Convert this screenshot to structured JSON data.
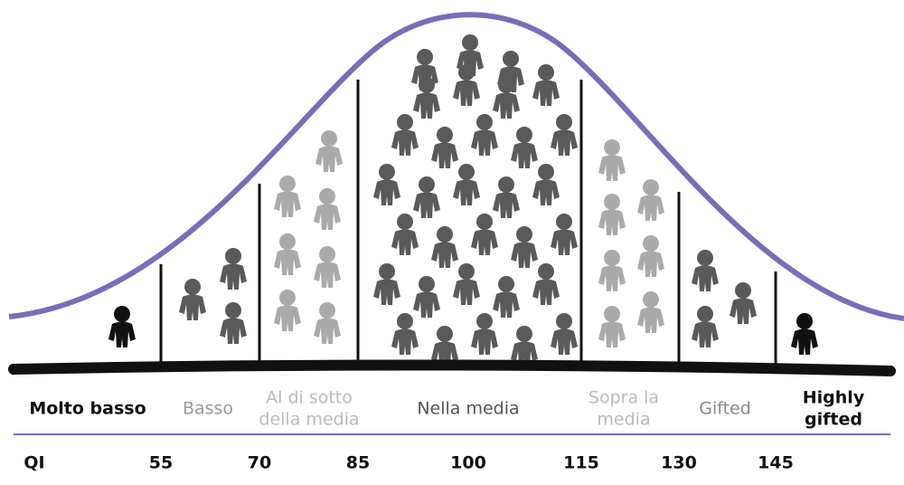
{
  "categories": [
    {
      "lines": [
        "Molto basso"
      ]
    },
    {
      "lines": [
        "Basso"
      ]
    },
    {
      "lines": [
        "Al di sotto",
        "della media"
      ]
    },
    {
      "lines": [
        "Nella media"
      ]
    },
    {
      "lines": [
        "Sopra la",
        "media"
      ]
    },
    {
      "lines": [
        "Gifted"
      ]
    },
    {
      "lines": [
        "Highly",
        "gifted"
      ]
    }
  ],
  "scale": {
    "label": "QI",
    "ticks": [
      "55",
      "70",
      "85",
      "100",
      "115",
      "130",
      "145"
    ]
  }
}
